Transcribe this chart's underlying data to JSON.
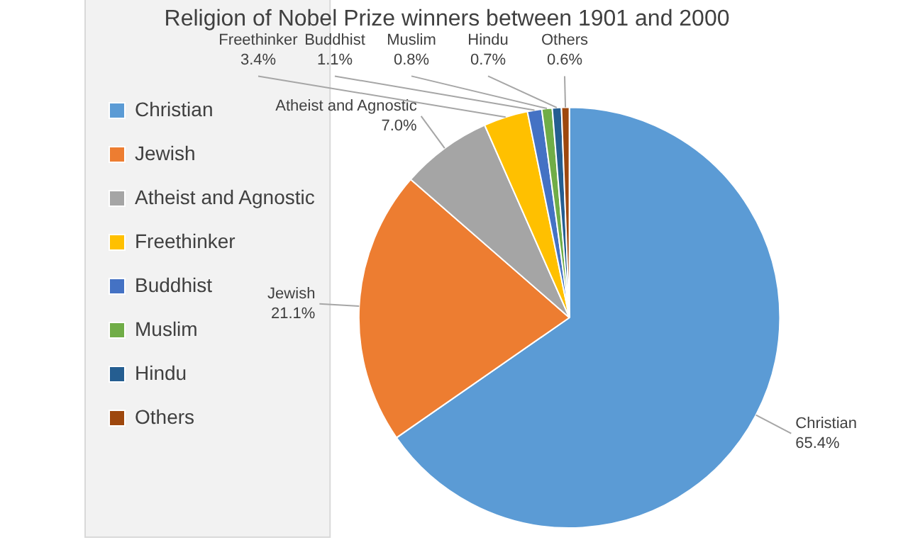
{
  "chart_data": {
    "type": "pie",
    "title": "Religion of Nobel Prize winners between 1901 and 2000",
    "categories": [
      "Christian",
      "Jewish",
      "Atheist and Agnostic",
      "Freethinker",
      "Buddhist",
      "Muslim",
      "Hindu",
      "Others"
    ],
    "values": [
      65.4,
      21.1,
      7.0,
      3.4,
      1.1,
      0.8,
      0.7,
      0.6
    ],
    "colors": [
      "#5b9bd5",
      "#ed7d31",
      "#a5a5a5",
      "#ffc000",
      "#4472c4",
      "#70ad47",
      "#255e91",
      "#9e480e"
    ],
    "value_labels": [
      "65.4%",
      "21.1%",
      "7.0%",
      "3.4%",
      "1.1%",
      "0.8%",
      "0.7%",
      "0.6%"
    ],
    "legend": "left"
  }
}
